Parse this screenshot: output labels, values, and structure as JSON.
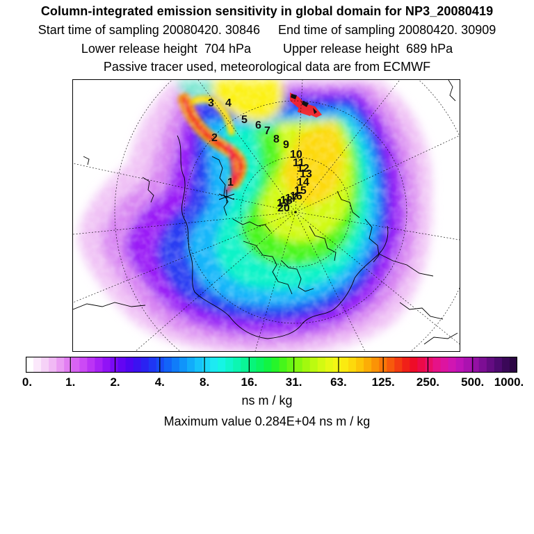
{
  "title": "Column-integrated emission sensitivity in global domain for NP3_20080419",
  "info": {
    "start_label": "Start time of sampling",
    "start_value": "20080420. 30846",
    "end_label": "End time of sampling",
    "end_value": "20080420. 30909",
    "lower_label": "Lower release height",
    "lower_value": "704 hPa",
    "upper_label": "Upper release height",
    "upper_value": "689 hPa",
    "tracer_note": "Passive tracer used, meteorological data are from ECMWF"
  },
  "trajectory_labels": [
    "1",
    "2",
    "3",
    "4",
    "5",
    "6",
    "7",
    "8",
    "9",
    "10",
    "11",
    "12",
    "13",
    "14",
    "15",
    "16",
    "17",
    "18",
    "19",
    "20"
  ],
  "colorbar": {
    "ticks": [
      "0.",
      "1.",
      "2.",
      "4.",
      "8.",
      "16.",
      "31.",
      "63.",
      "125.",
      "250.",
      "500.",
      "1000."
    ],
    "colors": [
      "#ffffff",
      "#fbe8fb",
      "#f6d2f7",
      "#f1b9f5",
      "#ea9cf3",
      "#e27ef2",
      "#d863f3",
      "#cc4af5",
      "#bb34f5",
      "#a822f6",
      "#9113f6",
      "#7a0af5",
      "#6305f3",
      "#4f06f2",
      "#3b12f1",
      "#2a22f2",
      "#1f36f4",
      "#174cf6",
      "#1264f8",
      "#107cf9",
      "#1094fa",
      "#12acfa",
      "#16c3fa",
      "#1bd8f8",
      "#1deaf2",
      "#16f5e4",
      "#10f6cc",
      "#0cf6b2",
      "#0af597",
      "#08f47b",
      "#0af460",
      "#12f442",
      "#26f52a",
      "#46f61a",
      "#66f714",
      "#86f810",
      "#a2f90e",
      "#bcfa10",
      "#d3fa12",
      "#e6f914",
      "#f4f614",
      "#fbea10",
      "#fdd90c",
      "#fdc508",
      "#fcad06",
      "#fb9306",
      "#f97708",
      "#f75a0c",
      "#f43c12",
      "#f12018",
      "#ee0c28",
      "#ec0a48",
      "#ea0e68",
      "#e61288",
      "#dd14a0",
      "#d016b2",
      "#bf14b8",
      "#ab12b0",
      "#9410a4",
      "#7c0e94",
      "#640c82",
      "#4e0a70",
      "#3a0858",
      "#2c0644"
    ]
  },
  "units": "ns m / kg",
  "max_value": "Maximum value  0.284E+04 ns m / kg"
}
